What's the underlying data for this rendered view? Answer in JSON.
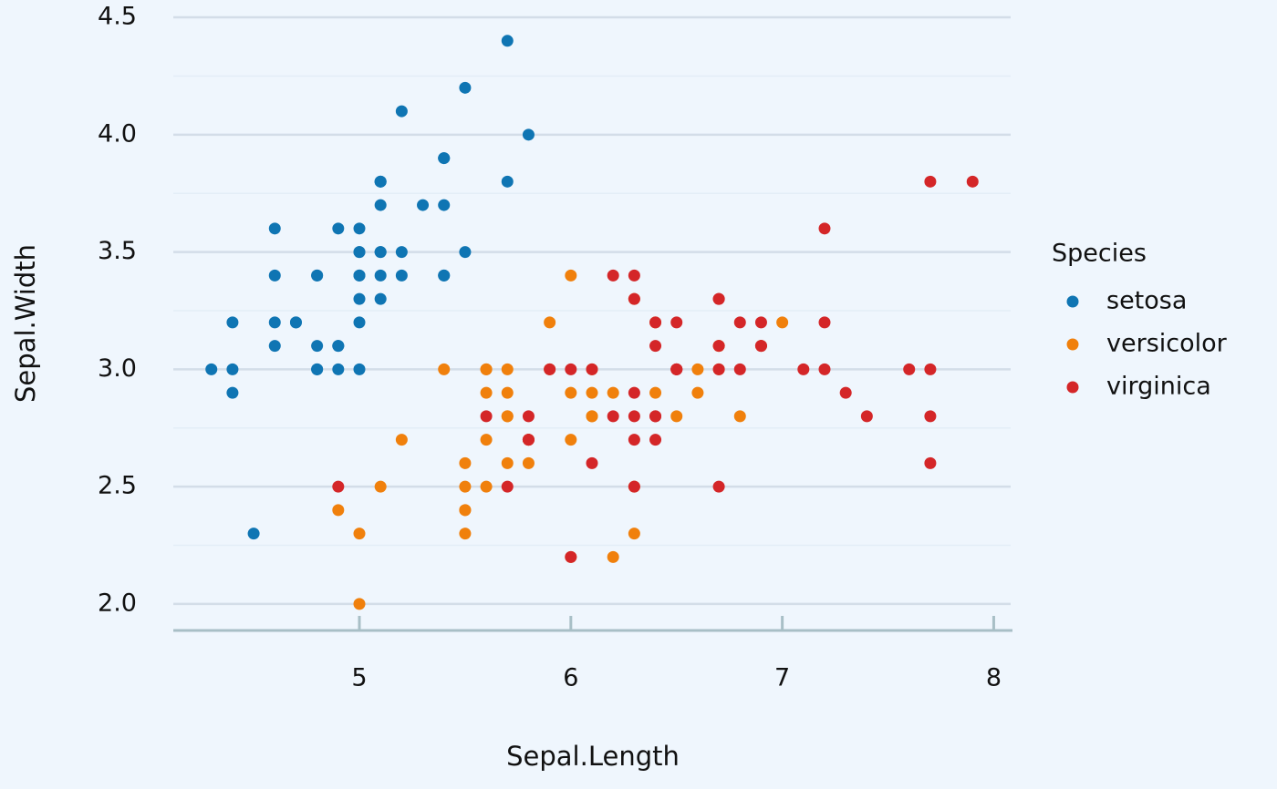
{
  "chart_data": {
    "type": "scatter",
    "x_label": "Sepal.Length",
    "y_label": "Sepal.Width",
    "legend_title": "Species",
    "legend": "right",
    "xlim": [
      4.12,
      8.08
    ],
    "xticks": [
      5,
      6,
      7,
      8
    ],
    "ylim": [
      1.887,
      4.574
    ],
    "yticks": [
      {
        "value": 2,
        "label": "2.0"
      },
      2.5,
      {
        "value": 3,
        "label": "3.0"
      },
      3.5,
      {
        "value": 4,
        "label": "4.0"
      },
      4.5
    ],
    "grid": true,
    "series": [
      {
        "name": "setosa",
        "color": "#0f75b3",
        "x": [
          5.1,
          4.9,
          4.7,
          4.6,
          5.0,
          5.4,
          4.6,
          5.0,
          4.4,
          4.9,
          5.4,
          4.8,
          4.8,
          4.3,
          5.8,
          5.7,
          5.4,
          5.1,
          5.7,
          5.1,
          5.4,
          5.1,
          4.6,
          5.1,
          4.8,
          5.0,
          5.0,
          5.2,
          5.2,
          4.7,
          4.8,
          5.4,
          5.2,
          5.5,
          4.9,
          5.0,
          5.5,
          4.9,
          4.4,
          5.1,
          5.0,
          4.5,
          4.4,
          5.0,
          5.1,
          4.8,
          5.1,
          4.6,
          5.3,
          5.0
        ],
        "values": [
          3.5,
          3.0,
          3.2,
          3.1,
          3.6,
          3.9,
          3.4,
          3.4,
          2.9,
          3.1,
          3.7,
          3.4,
          3.0,
          3.0,
          4.0,
          4.4,
          3.9,
          3.5,
          3.8,
          3.8,
          3.4,
          3.7,
          3.6,
          3.3,
          3.4,
          3.0,
          3.4,
          3.5,
          3.4,
          3.2,
          3.1,
          3.4,
          4.1,
          4.2,
          3.1,
          3.2,
          3.5,
          3.6,
          3.0,
          3.4,
          3.5,
          2.3,
          3.2,
          3.5,
          3.8,
          3.0,
          3.8,
          3.2,
          3.7,
          3.3
        ]
      },
      {
        "name": "versicolor",
        "color": "#f0800c",
        "x": [
          7.0,
          6.4,
          6.9,
          5.5,
          6.5,
          5.7,
          6.3,
          4.9,
          6.6,
          5.2,
          5.0,
          5.9,
          6.0,
          6.1,
          5.6,
          6.7,
          5.6,
          5.8,
          6.2,
          5.6,
          5.9,
          6.1,
          6.3,
          6.1,
          6.4,
          6.6,
          6.8,
          6.7,
          6.0,
          5.7,
          5.5,
          5.5,
          5.8,
          6.0,
          5.4,
          6.0,
          6.7,
          6.3,
          5.6,
          5.5,
          5.5,
          6.1,
          5.8,
          5.0,
          5.6,
          5.7,
          5.7,
          6.2,
          5.1,
          5.7
        ],
        "values": [
          3.2,
          3.2,
          3.1,
          2.3,
          2.8,
          2.8,
          3.3,
          2.4,
          2.9,
          2.7,
          2.0,
          3.0,
          2.2,
          2.9,
          2.9,
          3.1,
          3.0,
          2.7,
          2.2,
          2.5,
          3.2,
          2.8,
          2.5,
          2.8,
          2.9,
          3.0,
          2.8,
          3.0,
          2.9,
          2.6,
          2.4,
          2.4,
          2.7,
          2.7,
          3.0,
          3.4,
          3.1,
          2.3,
          3.0,
          2.5,
          2.6,
          3.0,
          2.6,
          2.3,
          2.7,
          3.0,
          2.9,
          2.9,
          2.5,
          2.8
        ]
      },
      {
        "name": "virginica",
        "color": "#d42628",
        "x": [
          6.3,
          5.8,
          7.1,
          6.3,
          6.5,
          7.6,
          4.9,
          7.3,
          6.7,
          7.2,
          6.5,
          6.4,
          6.8,
          5.7,
          5.8,
          6.4,
          6.5,
          7.7,
          7.7,
          6.0,
          6.9,
          5.6,
          7.7,
          6.3,
          6.7,
          7.2,
          6.2,
          6.1,
          6.4,
          7.2,
          7.4,
          7.9,
          6.4,
          6.3,
          6.1,
          7.7,
          6.3,
          6.4,
          6.0,
          6.9,
          6.7,
          6.9,
          5.8,
          6.8,
          6.7,
          6.7,
          6.3,
          6.5,
          6.2,
          5.9
        ],
        "values": [
          3.3,
          2.7,
          3.0,
          2.9,
          3.0,
          3.0,
          2.5,
          2.9,
          2.5,
          3.6,
          3.2,
          2.7,
          3.0,
          2.5,
          2.8,
          3.2,
          3.0,
          3.8,
          2.6,
          2.2,
          3.2,
          2.8,
          2.8,
          2.7,
          3.3,
          3.2,
          2.8,
          3.0,
          2.8,
          3.0,
          2.8,
          3.8,
          2.8,
          2.8,
          2.6,
          3.0,
          3.4,
          3.1,
          3.0,
          3.1,
          3.1,
          3.1,
          2.7,
          3.2,
          3.3,
          3.0,
          2.5,
          3.0,
          3.4,
          3.0
        ]
      }
    ]
  }
}
